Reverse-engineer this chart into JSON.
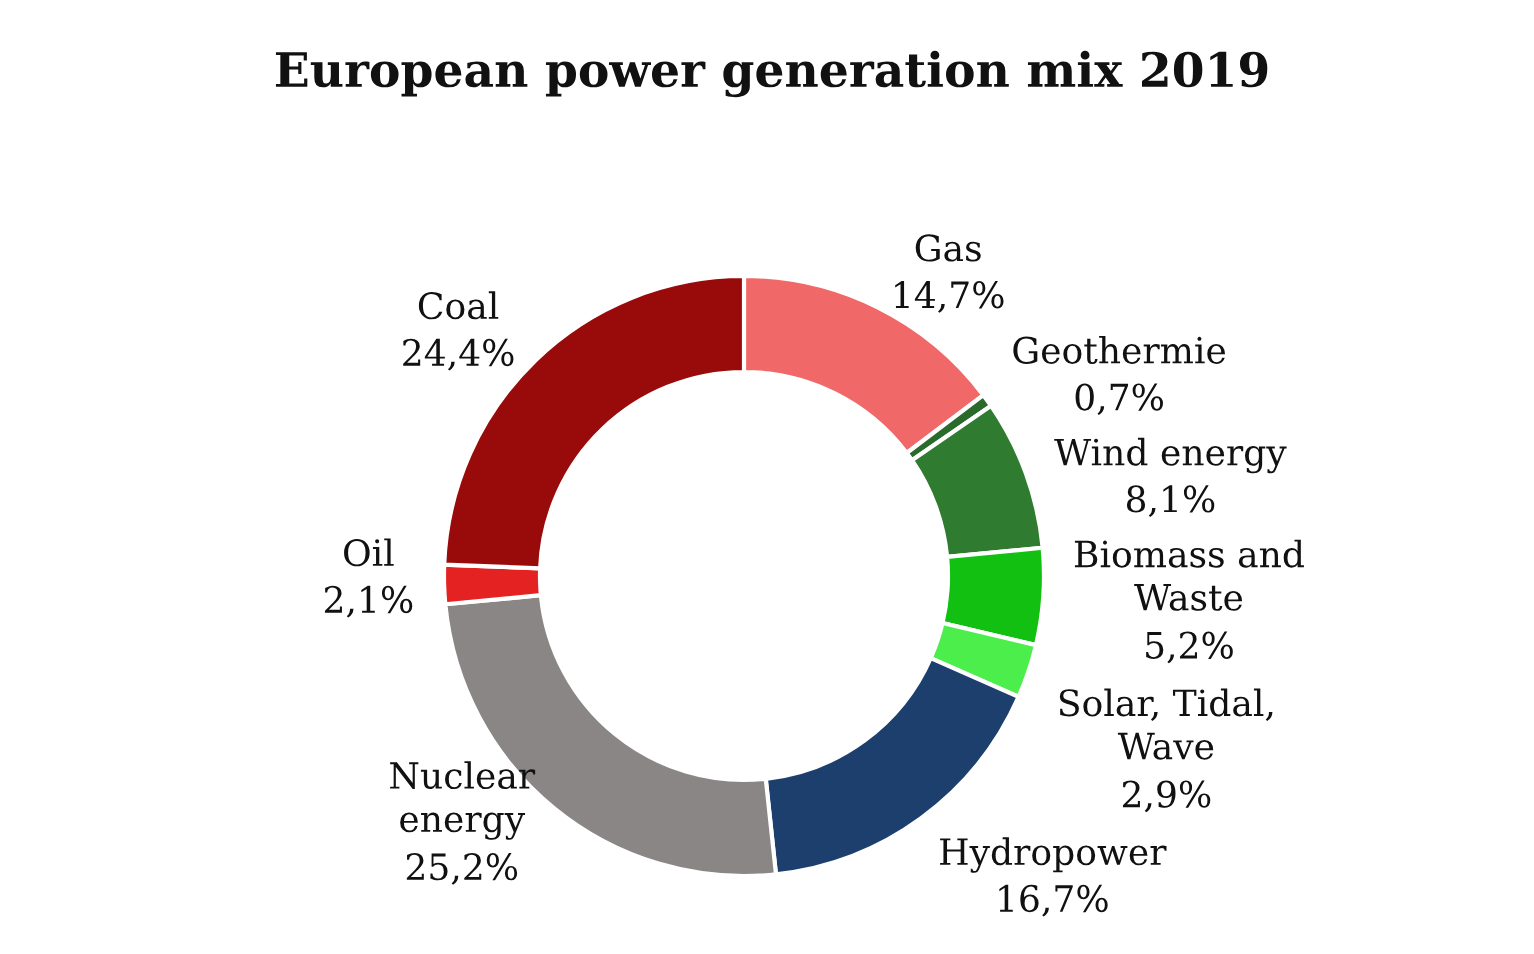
{
  "chart_data": {
    "type": "donut",
    "title": "European power generation mix 2019",
    "categories": [
      "Gas",
      "Geothermie",
      "Wind energy",
      "Biomass and\nWaste",
      "Solar, Tidal,\nWave",
      "Hydropower",
      "Nuclear\nenergy",
      "Oil",
      "Coal"
    ],
    "values": [
      14.7,
      0.7,
      8.1,
      5.2,
      2.9,
      16.7,
      25.2,
      2.1,
      24.4
    ],
    "colors": [
      "#f06868",
      "#2a6a2a",
      "#2f7b2f",
      "#12c012",
      "#4cee4c",
      "#1d3f6e",
      "#8a8686",
      "#e52222",
      "#990a0a"
    ],
    "value_labels": [
      "14,7%",
      "0,7%",
      "8,1%",
      "5,2%",
      "2,9%",
      "16,7%",
      "25,2%",
      "2,1%",
      "24,4%"
    ]
  }
}
